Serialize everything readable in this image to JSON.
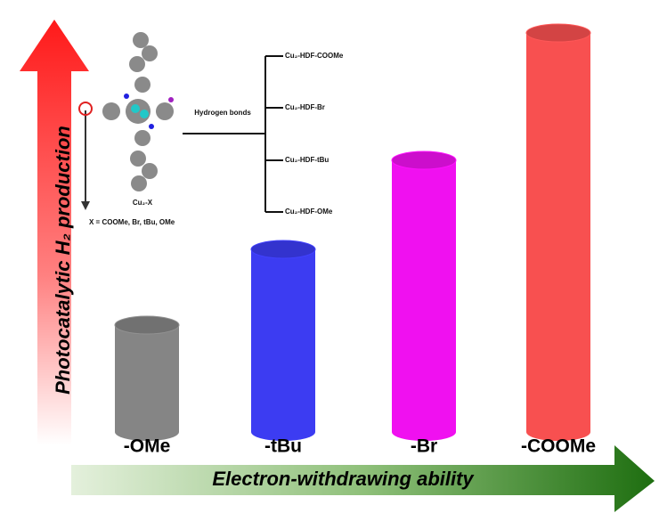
{
  "chart_data": {
    "type": "cylinder-bar",
    "y_label": "Photocatalytic H₂ production",
    "x_label": "Electron-withdrawing ability",
    "categories": [
      "-OMe",
      "-tBu",
      "-Br",
      "-COOMe"
    ],
    "series": [
      {
        "name": "H2 production",
        "values": [
          120,
          205,
          305,
          448
        ]
      }
    ],
    "colors": [
      "#858585",
      "#3c3cf2",
      "#f010f0",
      "#f85050"
    ],
    "inset": {
      "bond_label": "Hydrogen bonds",
      "products": [
        "Cu₂-HDF-COOMe",
        "Cu₂-HDF-Br",
        "Cu₂-HDF-tBu",
        "Cu₂-HDF-OMe"
      ],
      "complex_label": "Cu₂-X",
      "substituents": "X = COOMe, Br, tBu, OMe"
    }
  }
}
